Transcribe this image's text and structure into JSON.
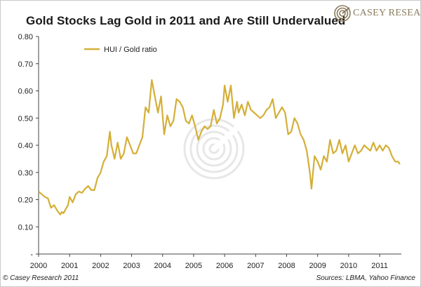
{
  "header": {
    "title": "Gold Stocks Lag Gold in 2011 and Are Still Undervalued",
    "logo_text": "CASEY RESEARCH"
  },
  "footer": {
    "copyright": "© Casey Research 2011",
    "sources": "Sources: LBMA, Yahoo Finance"
  },
  "colors": {
    "series": "#d4af37",
    "axis": "#444444",
    "watermark": "#bbbbbb",
    "logo": "#8a7a5a"
  },
  "chart_data": {
    "type": "line",
    "title": "Gold Stocks Lag Gold in 2011 and Are Still Undervalued",
    "xlabel": "",
    "ylabel": "",
    "xlim": [
      2000.0,
      2011.7
    ],
    "ylim": [
      0,
      0.8
    ],
    "grid": false,
    "legend_position": "top-left",
    "x_ticks": [
      2000,
      2001,
      2002,
      2003,
      2004,
      2005,
      2006,
      2007,
      2008,
      2009,
      2010,
      2011
    ],
    "x_tick_labels": [
      "2000",
      "2001",
      "2002",
      "2003",
      "2004",
      "2005",
      "2006",
      "2007",
      "2008",
      "2009",
      "2010",
      "2011"
    ],
    "y_ticks": [
      0,
      0.1,
      0.2,
      0.3,
      0.4,
      0.5,
      0.6,
      0.7,
      0.8
    ],
    "y_tick_labels": [
      "-",
      "0.10",
      "0.20",
      "0.30",
      "0.40",
      "0.50",
      "0.60",
      "0.70",
      "0.80"
    ],
    "series": [
      {
        "name": "HUI / Gold ratio",
        "x": [
          2000.0,
          2000.1,
          2000.2,
          2000.3,
          2000.4,
          2000.5,
          2000.6,
          2000.7,
          2000.75,
          2000.8,
          2000.9,
          2000.95,
          2001.0,
          2001.1,
          2001.2,
          2001.3,
          2001.4,
          2001.5,
          2001.6,
          2001.7,
          2001.8,
          2001.9,
          2002.0,
          2002.1,
          2002.2,
          2002.3,
          2002.35,
          2002.45,
          2002.55,
          2002.65,
          2002.75,
          2002.85,
          2002.95,
          2003.05,
          2003.15,
          2003.25,
          2003.35,
          2003.45,
          2003.55,
          2003.65,
          2003.75,
          2003.85,
          2003.95,
          2004.05,
          2004.15,
          2004.25,
          2004.35,
          2004.45,
          2004.55,
          2004.65,
          2004.75,
          2004.85,
          2004.95,
          2005.05,
          2005.15,
          2005.25,
          2005.35,
          2005.45,
          2005.55,
          2005.65,
          2005.75,
          2005.85,
          2005.95,
          2006.0,
          2006.1,
          2006.2,
          2006.3,
          2006.4,
          2006.45,
          2006.55,
          2006.65,
          2006.75,
          2006.85,
          2006.95,
          2007.05,
          2007.15,
          2007.25,
          2007.35,
          2007.45,
          2007.55,
          2007.65,
          2007.75,
          2007.85,
          2007.95,
          2008.05,
          2008.15,
          2008.25,
          2008.35,
          2008.45,
          2008.55,
          2008.65,
          2008.75,
          2008.8,
          2008.9,
          2009.0,
          2009.1,
          2009.2,
          2009.3,
          2009.4,
          2009.5,
          2009.6,
          2009.7,
          2009.8,
          2009.9,
          2010.0,
          2010.1,
          2010.2,
          2010.3,
          2010.4,
          2010.5,
          2010.6,
          2010.7,
          2010.8,
          2010.9,
          2011.0,
          2011.1,
          2011.2,
          2011.3,
          2011.4,
          2011.5,
          2011.6,
          2011.65
        ],
        "values": [
          0.23,
          0.22,
          0.21,
          0.205,
          0.17,
          0.18,
          0.16,
          0.145,
          0.155,
          0.15,
          0.17,
          0.18,
          0.21,
          0.19,
          0.22,
          0.23,
          0.225,
          0.24,
          0.25,
          0.235,
          0.235,
          0.28,
          0.3,
          0.34,
          0.36,
          0.45,
          0.4,
          0.35,
          0.41,
          0.35,
          0.37,
          0.43,
          0.4,
          0.37,
          0.37,
          0.4,
          0.43,
          0.54,
          0.52,
          0.64,
          0.58,
          0.52,
          0.58,
          0.44,
          0.51,
          0.47,
          0.49,
          0.57,
          0.56,
          0.54,
          0.49,
          0.48,
          0.51,
          0.47,
          0.42,
          0.45,
          0.47,
          0.46,
          0.47,
          0.53,
          0.48,
          0.5,
          0.55,
          0.62,
          0.56,
          0.62,
          0.5,
          0.56,
          0.52,
          0.55,
          0.51,
          0.56,
          0.53,
          0.52,
          0.51,
          0.5,
          0.51,
          0.53,
          0.54,
          0.57,
          0.5,
          0.52,
          0.54,
          0.52,
          0.44,
          0.45,
          0.5,
          0.48,
          0.44,
          0.42,
          0.38,
          0.3,
          0.24,
          0.36,
          0.34,
          0.31,
          0.36,
          0.34,
          0.42,
          0.37,
          0.38,
          0.42,
          0.37,
          0.4,
          0.34,
          0.37,
          0.4,
          0.37,
          0.38,
          0.4,
          0.39,
          0.38,
          0.41,
          0.38,
          0.4,
          0.38,
          0.4,
          0.39,
          0.36,
          0.34,
          0.34,
          0.33
        ]
      }
    ]
  }
}
